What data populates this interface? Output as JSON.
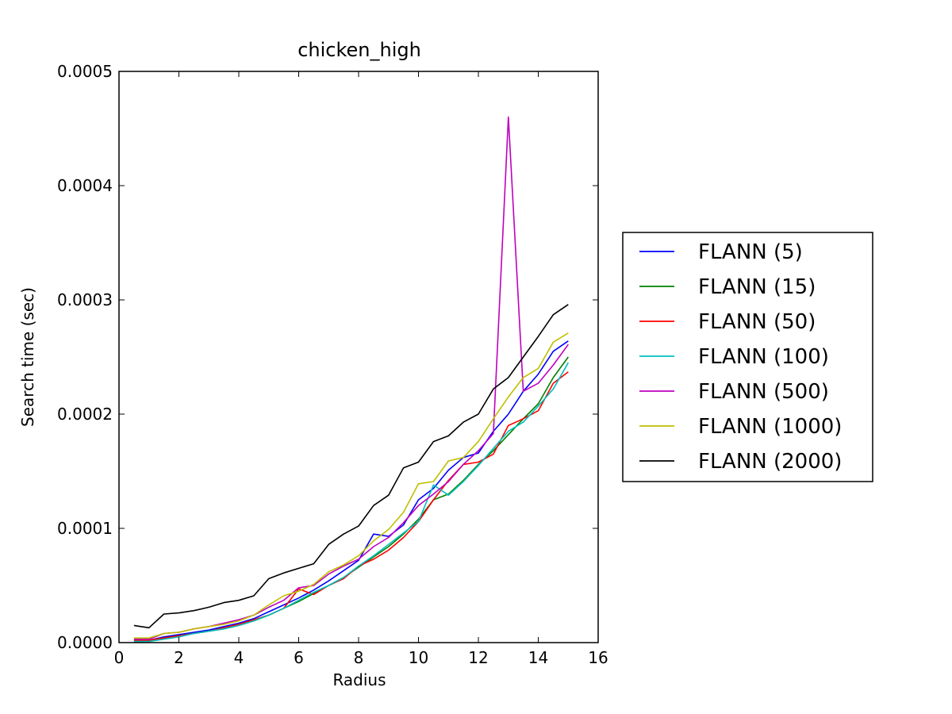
{
  "chart_data": {
    "type": "line",
    "title": "chicken_high",
    "xlabel": "Radius",
    "ylabel": "Search time (sec)",
    "xlim": [
      0,
      16
    ],
    "ylim": [
      0,
      0.0005
    ],
    "xticks": [
      "0",
      "2",
      "4",
      "6",
      "8",
      "10",
      "12",
      "14",
      "16"
    ],
    "yticks": [
      "0.0000",
      "0.0001",
      "0.0002",
      "0.0003",
      "0.0004",
      "0.0005"
    ],
    "grid": false,
    "legend_position": "right, outside plot",
    "x": [
      0.5,
      1.0,
      1.5,
      2.0,
      2.5,
      3.0,
      3.5,
      4.0,
      4.5,
      5.0,
      5.5,
      6.0,
      6.5,
      7.0,
      7.5,
      8.0,
      8.5,
      9.0,
      9.5,
      10.0,
      10.5,
      11.0,
      11.5,
      12.0,
      12.5,
      13.0,
      13.5,
      14.0,
      14.5,
      15.0
    ],
    "series": [
      {
        "name": "FLANN (5)",
        "color": "#0000ff",
        "values": [
          2e-06,
          2e-06,
          5e-06,
          7e-06,
          9e-06,
          1.1e-05,
          1.4e-05,
          1.7e-05,
          2.1e-05,
          2.7e-05,
          3.3e-05,
          3.9e-05,
          4.6e-05,
          5.4e-05,
          6.3e-05,
          7.2e-05,
          9.5e-05,
          9.3e-05,
          0.000103,
          0.000125,
          0.000135,
          0.000151,
          0.000162,
          0.000166,
          0.000185,
          0.0002,
          0.00022,
          0.000235,
          0.000255,
          0.000264
        ]
      },
      {
        "name": "FLANN (15)",
        "color": "#008000",
        "values": [
          1e-06,
          1e-06,
          4e-06,
          6e-06,
          8e-06,
          1e-05,
          1.2e-05,
          1.5e-05,
          1.9e-05,
          2.4e-05,
          3e-05,
          3.6e-05,
          4.3e-05,
          5e-05,
          5.7e-05,
          6.6e-05,
          7.5e-05,
          8.4e-05,
          9.5e-05,
          0.000108,
          0.000125,
          0.00013,
          0.000142,
          0.000156,
          0.000168,
          0.000182,
          0.000196,
          0.000209,
          0.000232,
          0.00025
        ]
      },
      {
        "name": "FLANN (50)",
        "color": "#ff0000",
        "values": [
          2e-06,
          2e-06,
          4e-06,
          6e-06,
          8e-06,
          1e-05,
          1.3e-05,
          1.6e-05,
          2e-05,
          2.4e-05,
          3e-05,
          4.7e-05,
          4.2e-05,
          5e-05,
          5.6e-05,
          6.7e-05,
          7.3e-05,
          8.1e-05,
          9.2e-05,
          0.000106,
          0.000125,
          0.000142,
          0.000156,
          0.000158,
          0.000165,
          0.00019,
          0.000196,
          0.000203,
          0.000227,
          0.000237
        ]
      },
      {
        "name": "FLANN (100)",
        "color": "#00bfbf",
        "values": [
          1e-06,
          1e-06,
          3e-06,
          5e-06,
          8e-06,
          1e-05,
          1.2e-05,
          1.5e-05,
          1.9e-05,
          2.4e-05,
          3e-05,
          3.7e-05,
          4.4e-05,
          5e-05,
          5.7e-05,
          6.7e-05,
          7.6e-05,
          8.6e-05,
          9.6e-05,
          0.000106,
          0.000138,
          0.000129,
          0.000141,
          0.000155,
          0.00017,
          0.000185,
          0.000193,
          0.000207,
          0.000222,
          0.000245
        ]
      },
      {
        "name": "FLANN (500)",
        "color": "#bf00bf",
        "values": [
          3e-06,
          3e-06,
          8e-06,
          9e-06,
          1.2e-05,
          1.4e-05,
          1.7e-05,
          2e-05,
          2.4e-05,
          3.1e-05,
          3.7e-05,
          4.8e-05,
          5e-05,
          6e-05,
          6.7e-05,
          7.3e-05,
          8.4e-05,
          9.2e-05,
          0.000105,
          0.00012,
          0.00013,
          0.000141,
          0.000156,
          0.000168,
          0.000183,
          0.00046,
          0.00022,
          0.000227,
          0.000243,
          0.000261
        ]
      },
      {
        "name": "FLANN (1000)",
        "color": "#bfbf00",
        "values": [
          4e-06,
          4e-06,
          8e-06,
          9e-06,
          1.2e-05,
          1.4e-05,
          1.6e-05,
          1.9e-05,
          2.4e-05,
          3.3e-05,
          4.1e-05,
          4.5e-05,
          5.1e-05,
          6.2e-05,
          6.8e-05,
          7.6e-05,
          8.9e-05,
          9.9e-05,
          0.000114,
          0.000139,
          0.000141,
          0.000159,
          0.000162,
          0.000176,
          0.000196,
          0.000215,
          0.000232,
          0.00024,
          0.000263,
          0.000271
        ]
      },
      {
        "name": "FLANN (2000)",
        "color": "#000000",
        "values": [
          1.5e-05,
          1.3e-05,
          2.5e-05,
          2.6e-05,
          2.8e-05,
          3.1e-05,
          3.5e-05,
          3.7e-05,
          4.1e-05,
          5.6e-05,
          6.1e-05,
          6.5e-05,
          6.9e-05,
          8.6e-05,
          9.5e-05,
          0.000102,
          0.00012,
          0.000129,
          0.000153,
          0.000158,
          0.000176,
          0.000181,
          0.000193,
          0.0002,
          0.000222,
          0.000232,
          0.00025,
          0.000268,
          0.000287,
          0.000296
        ]
      }
    ]
  }
}
